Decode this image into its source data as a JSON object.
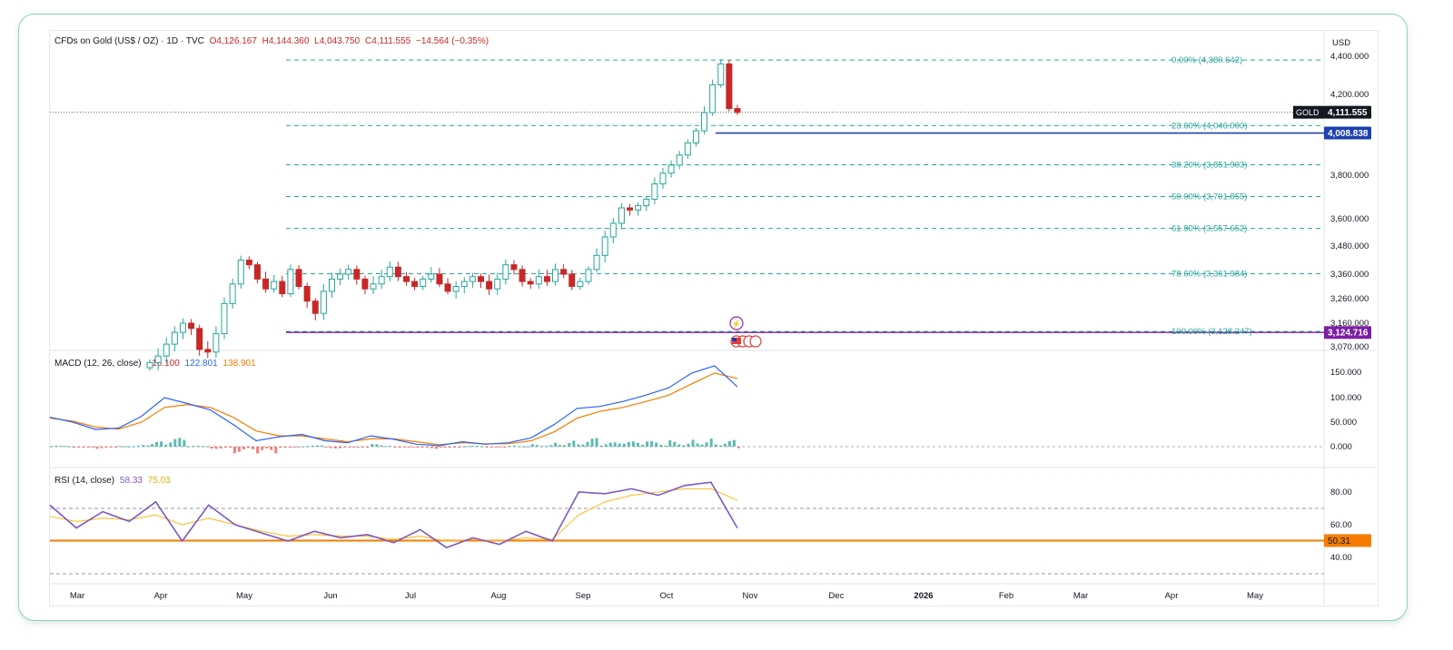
{
  "header": {
    "symbol": "CFDs on Gold (US$ / OZ) · 1D · TVC",
    "open": "O4,126.167",
    "high": "H4,144.360",
    "low": "L4,043.750",
    "close": "C4,111.555",
    "change": "−14.564 (−0.35%)"
  },
  "currency": "USD",
  "price_tags": {
    "last_symbol": "GOLD",
    "last_price": "4,111.555",
    "level_price": "4,008.838",
    "low_price": "3,124.716",
    "rsi_level": "50.31"
  },
  "macd": {
    "label": "MACD (12, 26, close)",
    "hist": "−16.100",
    "macd": "122.801",
    "signal": "138.901"
  },
  "rsi": {
    "label": "RSI (14, close)",
    "value": "58.33",
    "ma": "75.03"
  },
  "colors": {
    "up": "#26a69a",
    "down": "#c62828",
    "fib": "#26a69a",
    "macd": "#2962ff",
    "signal": "#f57c00",
    "rsi": "#7e57c2",
    "rsi_ma": "#fbc02d",
    "level": "#1e40af",
    "low": "#7b1fa2"
  },
  "icons": [
    "lightning-event-icon",
    "us-flag-event-icon"
  ],
  "chart_data": [
    {
      "type": "candlestick",
      "title": "CFDs on Gold (US$ / OZ) · 1D · TVC",
      "x_ticks": [
        "Mar",
        "Apr",
        "May",
        "Jun",
        "Jul",
        "Aug",
        "Sep",
        "Oct",
        "Nov",
        "Dec",
        "2026",
        "Feb",
        "Mar",
        "Apr",
        "May"
      ],
      "y_ticks": [
        "4,400.000",
        "4,200.000",
        "3,800.000",
        "3,600.000",
        "3,480.000",
        "3,360.000",
        "3,260.000",
        "3,160.000",
        "3,070.000"
      ],
      "fib_levels": [
        {
          "label": "0.00% (4,380.642)",
          "value": 4380.642
        },
        {
          "label": "23.60% (4,046.000)",
          "value": 4046.0
        },
        {
          "label": "38.20% (3,851.903)",
          "value": 3851.903
        },
        {
          "label": "50.00% (3,701.855)",
          "value": 3701.855
        },
        {
          "label": "61.80% (3,557.652)",
          "value": 3557.652
        },
        {
          "label": "78.60% (3,361.984)",
          "value": 3361.984
        },
        {
          "label": "100.00% (3,128.247)",
          "value": 3128.247
        }
      ],
      "approx_closes": [
        3010,
        3035,
        3080,
        3125,
        3160,
        3140,
        3060,
        3050,
        3120,
        3240,
        3320,
        3420,
        3400,
        3340,
        3300,
        3330,
        3280,
        3380,
        3310,
        3250,
        3200,
        3290,
        3340,
        3360,
        3380,
        3340,
        3300,
        3320,
        3350,
        3390,
        3350,
        3330,
        3310,
        3340,
        3360,
        3320,
        3290,
        3310,
        3330,
        3350,
        3330,
        3300,
        3340,
        3400,
        3380,
        3330,
        3320,
        3350,
        3330,
        3380,
        3360,
        3310,
        3330,
        3380,
        3440,
        3520,
        3580,
        3650,
        3640,
        3660,
        3690,
        3760,
        3810,
        3850,
        3900,
        3960,
        4020,
        4110,
        4250,
        4360,
        4130,
        4111
      ]
    },
    {
      "type": "line",
      "title": "MACD (12, 26, close)",
      "y_ticks": [
        "150.000",
        "100.000",
        "50.000",
        "0.000"
      ],
      "series": [
        {
          "name": "MACD",
          "values": [
            60,
            50,
            35,
            38,
            62,
            100,
            88,
            75,
            45,
            12,
            20,
            25,
            12,
            8,
            22,
            15,
            5,
            2,
            10,
            5,
            8,
            18,
            45,
            78,
            82,
            92,
            105,
            120,
            150,
            165,
            122
          ]
        },
        {
          "name": "Signal",
          "values": [
            58,
            52,
            40,
            36,
            50,
            80,
            86,
            80,
            60,
            32,
            22,
            22,
            16,
            10,
            16,
            16,
            10,
            4,
            8,
            6,
            6,
            12,
            30,
            58,
            72,
            80,
            92,
            105,
            128,
            150,
            139
          ]
        }
      ]
    },
    {
      "type": "line",
      "title": "RSI (14, close)",
      "y_ticks": [
        "80.00",
        "60.00",
        "40.00"
      ],
      "series": [
        {
          "name": "RSI",
          "values": [
            72,
            58,
            68,
            62,
            74,
            50,
            72,
            60,
            55,
            50,
            56,
            52,
            54,
            49,
            57,
            46,
            52,
            48,
            56,
            50,
            80,
            79,
            82,
            78,
            84,
            86,
            58
          ]
        },
        {
          "name": "RSI MA",
          "values": [
            65,
            62,
            64,
            63,
            66,
            60,
            64,
            60,
            56,
            53,
            54,
            53,
            53,
            51,
            53,
            50,
            51,
            50,
            52,
            51,
            66,
            74,
            78,
            80,
            82,
            82,
            75
          ]
        }
      ]
    }
  ]
}
